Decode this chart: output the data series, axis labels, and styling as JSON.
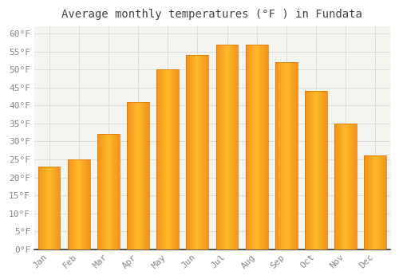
{
  "title": "Average monthly temperatures (°F ) in Fundata",
  "months": [
    "Jan",
    "Feb",
    "Mar",
    "Apr",
    "May",
    "Jun",
    "Jul",
    "Aug",
    "Sep",
    "Oct",
    "Nov",
    "Dec"
  ],
  "values": [
    23,
    25,
    32,
    41,
    50,
    54,
    57,
    57,
    52,
    44,
    35,
    26
  ],
  "bar_color_center": "#FFB92A",
  "bar_color_edge": "#F0921A",
  "background_color": "#FFFFFF",
  "plot_bg_color": "#F5F5F0",
  "grid_color": "#DDDDDD",
  "tick_label_color": "#888888",
  "title_color": "#444444",
  "spine_color": "#333333",
  "ylim": [
    0,
    62
  ],
  "yticks": [
    0,
    5,
    10,
    15,
    20,
    25,
    30,
    35,
    40,
    45,
    50,
    55,
    60
  ],
  "ylabel_suffix": "°F",
  "title_fontsize": 10,
  "tick_fontsize": 8,
  "fig_width": 5.0,
  "fig_height": 3.5,
  "dpi": 100,
  "bar_width": 0.75
}
